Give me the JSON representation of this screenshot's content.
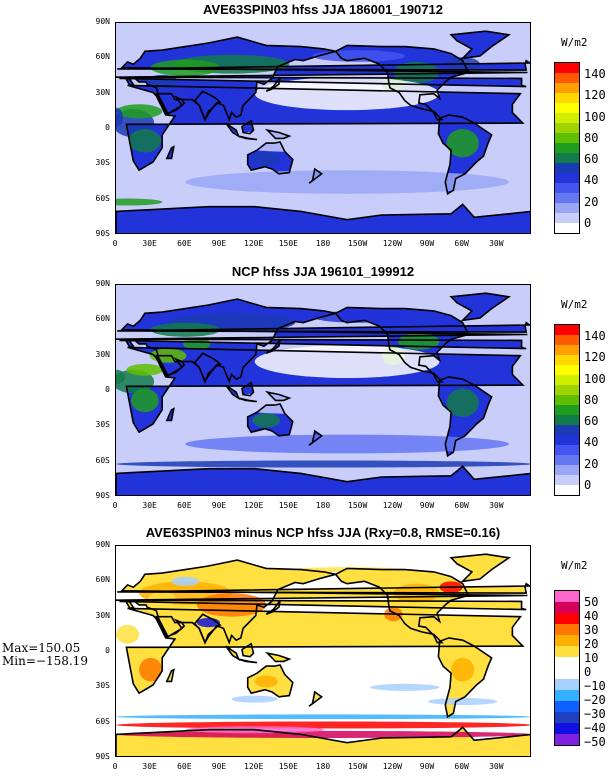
{
  "figure": {
    "panels": [
      {
        "title": "AVE63SPIN03 hfss JJA 186001_190712",
        "unit": "W/m2",
        "lat_labels": [
          "90N",
          "60N",
          "30N",
          "0",
          "30S",
          "60S",
          "90S"
        ],
        "lon_labels": [
          "0",
          "30E",
          "60E",
          "90E",
          "120E",
          "150E",
          "180",
          "150W",
          "120W",
          "90W",
          "60W",
          "30W"
        ],
        "levels": [
          "140",
          "120",
          "100",
          "80",
          "60",
          "40",
          "20",
          "0"
        ],
        "colors": [
          "#ff0000",
          "#ff5a00",
          "#ffa000",
          "#ffd800",
          "#ffff00",
          "#d2ee00",
          "#9fd400",
          "#5fbe00",
          "#1e9e1e",
          "#137a4a",
          "#1a3bb4",
          "#2233d9",
          "#4455ee",
          "#6677f2",
          "#9aa6f6",
          "#c8cdfa",
          "#ffffff"
        ],
        "ocean_color": "#c8cdfa",
        "chart_data": {
          "type": "heatmap",
          "title": "AVE63SPIN03 hfss JJA 186001_190712",
          "variable": "hfss",
          "season": "JJA",
          "period": "186001_190712",
          "unit": "W/m2",
          "lon_range": [
            0,
            360
          ],
          "lat_range": [
            -90,
            90
          ],
          "levels": [
            0,
            10,
            20,
            30,
            40,
            50,
            60,
            70,
            80,
            90,
            100,
            110,
            120,
            130,
            140,
            150
          ]
        }
      },
      {
        "title": "NCP hfss JJA 196101_199912",
        "unit": "W/m2",
        "lat_labels": [
          "90N",
          "60N",
          "30N",
          "0",
          "30S",
          "60S",
          "90S"
        ],
        "lon_labels": [
          "0",
          "30E",
          "60E",
          "90E",
          "120E",
          "150E",
          "180",
          "150W",
          "120W",
          "90W",
          "60W",
          "30W"
        ],
        "levels": [
          "140",
          "120",
          "100",
          "80",
          "60",
          "40",
          "20",
          "0"
        ],
        "colors": [
          "#ff0000",
          "#ff5a00",
          "#ffa000",
          "#ffd800",
          "#ffff00",
          "#d2ee00",
          "#9fd400",
          "#5fbe00",
          "#1e9e1e",
          "#137a4a",
          "#1a3bb4",
          "#2233d9",
          "#4455ee",
          "#6677f2",
          "#9aa6f6",
          "#c8cdfa",
          "#ffffff"
        ],
        "ocean_color": "#c8cdfa",
        "chart_data": {
          "type": "heatmap",
          "title": "NCP hfss JJA 196101_199912",
          "variable": "hfss",
          "season": "JJA",
          "period": "196101_199912",
          "unit": "W/m2",
          "lon_range": [
            0,
            360
          ],
          "lat_range": [
            -90,
            90
          ],
          "levels": [
            0,
            10,
            20,
            30,
            40,
            50,
            60,
            70,
            80,
            90,
            100,
            110,
            120,
            130,
            140,
            150
          ]
        }
      },
      {
        "title": "AVE63SPIN03 minus NCP hfss JJA (Rxy=0.8, RMSE=0.16)",
        "unit": "W/m2",
        "lat_labels": [
          "90N",
          "60N",
          "30N",
          "0",
          "30S",
          "60S",
          "90S"
        ],
        "lon_labels": [
          "0",
          "30E",
          "60E",
          "90E",
          "120E",
          "150E",
          "180",
          "150W",
          "120W",
          "90W",
          "60W",
          "30W"
        ],
        "levels": [
          "50",
          "40",
          "30",
          "20",
          "10",
          "0",
          "−10",
          "−20",
          "−30",
          "−40",
          "−50"
        ],
        "colors": [
          "#ff66cc",
          "#d4005a",
          "#ff0000",
          "#ff7700",
          "#ffb000",
          "#ffe040",
          "#ffffff",
          "#ffffff",
          "#a8d0ff",
          "#33b0ff",
          "#1060ff",
          "#2040c0",
          "#1010e0",
          "#8020e0"
        ],
        "ocean_color": "#ffffff",
        "stats": {
          "max": "Max=150.05",
          "min": "Min=−158.19"
        },
        "chart_data": {
          "type": "heatmap",
          "title": "AVE63SPIN03 minus NCP hfss JJA (Rxy=0.8, RMSE=0.16)",
          "variable": "hfss difference",
          "season": "JJA",
          "rxy": 0.8,
          "rmse": 0.16,
          "max": 150.05,
          "min": -158.19,
          "unit": "W/m2",
          "lon_range": [
            0,
            360
          ],
          "lat_range": [
            -90,
            90
          ],
          "levels": [
            -50,
            -40,
            -30,
            -20,
            -10,
            0,
            10,
            20,
            30,
            40,
            50
          ]
        }
      }
    ]
  }
}
